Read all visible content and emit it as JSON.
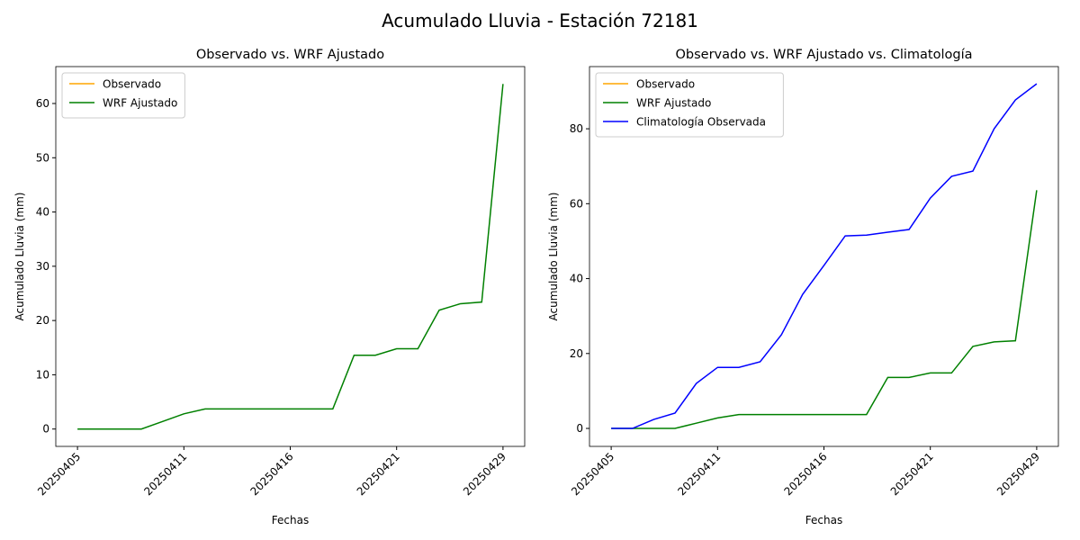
{
  "title": "Acumulado Lluvia - Estación 72181",
  "chart_data": [
    {
      "type": "line",
      "title": "Observado vs. WRF Ajustado",
      "x_label": "Fechas",
      "y_label": "Acumulado Lluvia (mm)",
      "categories": [
        "20250405",
        null,
        null,
        null,
        null,
        "20250411",
        null,
        null,
        null,
        null,
        "20250416",
        null,
        null,
        null,
        null,
        "20250421",
        null,
        null,
        null,
        null,
        "20250429"
      ],
      "series": [
        {
          "name": "Observado",
          "color": "orange",
          "values": [
            null,
            null,
            null,
            null,
            null,
            null,
            null,
            null,
            null,
            null,
            null,
            null,
            null,
            null,
            null,
            null,
            null,
            null,
            null,
            null,
            null
          ]
        },
        {
          "name": "WRF Ajustado",
          "color": "green",
          "values": [
            0,
            0,
            0,
            0,
            1.4,
            2.8,
            3.7,
            3.7,
            3.7,
            3.7,
            3.7,
            3.7,
            3.7,
            13.6,
            13.6,
            14.8,
            14.8,
            21.9,
            23.1,
            23.4,
            63.6
          ]
        }
      ],
      "ylim": [
        -3.2,
        66.8
      ],
      "yticks": [
        0,
        10,
        20,
        30,
        40,
        50,
        60
      ],
      "legend": "upper left"
    },
    {
      "type": "line",
      "title": "Observado vs. WRF Ajustado vs. Climatología",
      "x_label": "Fechas",
      "y_label": "Acumulado Lluvia (mm)",
      "categories": [
        "20250405",
        null,
        null,
        null,
        null,
        "20250411",
        null,
        null,
        null,
        null,
        "20250416",
        null,
        null,
        null,
        null,
        "20250421",
        null,
        null,
        null,
        null,
        "20250429"
      ],
      "series": [
        {
          "name": "Observado",
          "color": "orange",
          "values": [
            null,
            null,
            null,
            null,
            null,
            null,
            null,
            null,
            null,
            null,
            null,
            null,
            null,
            null,
            null,
            null,
            null,
            null,
            null,
            null,
            null
          ]
        },
        {
          "name": "WRF Ajustado",
          "color": "green",
          "values": [
            0,
            0,
            0,
            0,
            1.4,
            2.8,
            3.7,
            3.7,
            3.7,
            3.7,
            3.7,
            3.7,
            3.7,
            13.6,
            13.6,
            14.8,
            14.8,
            21.9,
            23.1,
            23.4,
            63.6
          ]
        },
        {
          "name": "Climatología Observada",
          "color": "blue",
          "values": [
            0,
            0,
            2.4,
            4.1,
            12.0,
            16.3,
            16.3,
            17.8,
            25.0,
            35.8,
            43.5,
            51.4,
            51.6,
            52.4,
            53.1,
            61.5,
            67.3,
            68.7,
            80.0,
            87.7,
            92.0
          ]
        }
      ],
      "ylim": [
        -4.8,
        96.6
      ],
      "yticks": [
        0,
        20,
        40,
        60,
        80
      ],
      "legend": "upper left"
    }
  ]
}
